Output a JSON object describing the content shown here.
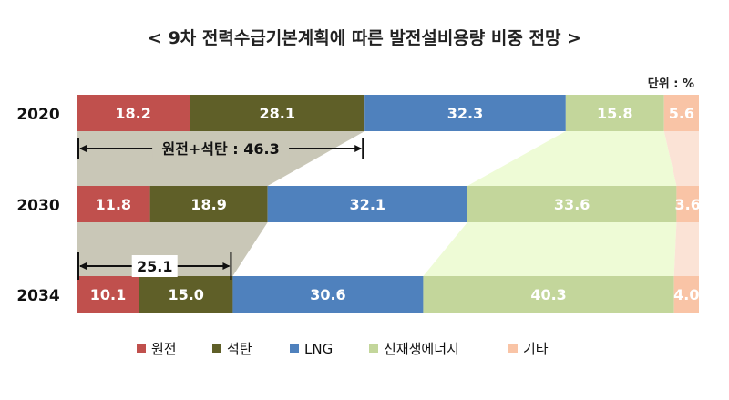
{
  "chart_data": {
    "type": "bar",
    "stacked": true,
    "orientation": "horizontal",
    "title": "< 9차 전력수급기본계획에 따른 발전설비용량 비중 전망 >",
    "unit_label": "단위 : %",
    "categories": [
      "2020",
      "2030",
      "2034"
    ],
    "series": [
      {
        "name": "원전",
        "color": "#c0504d",
        "values": [
          18.2,
          11.8,
          10.1
        ]
      },
      {
        "name": "석탄",
        "color": "#5f5f28",
        "values": [
          28.1,
          18.9,
          15.0
        ]
      },
      {
        "name": "LNG",
        "color": "#4f81bd",
        "values": [
          32.3,
          32.1,
          30.6
        ]
      },
      {
        "name": "신재생에너지",
        "color": "#c3d69b",
        "values": [
          15.8,
          33.6,
          40.3
        ]
      },
      {
        "name": "기타",
        "color": "#f9c4a6",
        "values": [
          5.6,
          3.6,
          4.0
        ]
      }
    ],
    "annotations": [
      {
        "category": "2020",
        "text": "원전+석탄 : 46.3",
        "value": 46.3
      },
      {
        "category": "2034",
        "text": "25.1",
        "value": 25.1
      }
    ],
    "legend_position": "bottom",
    "xlim": [
      0,
      100
    ]
  },
  "colors": {
    "connector_gray": "#c9c7b7",
    "connector_green": "#eefbd6",
    "connector_pink": "#fbe3d6",
    "label_text": "#ffffff"
  }
}
